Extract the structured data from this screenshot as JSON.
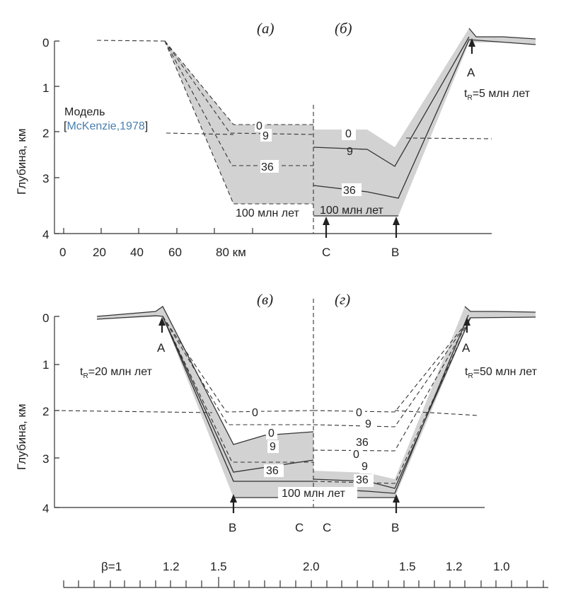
{
  "panels": {
    "a": "(а)",
    "b": "(б)",
    "v": "(в)",
    "g": "(г)"
  },
  "y_axis": {
    "label": "Глубина, км",
    "ticks": [
      "0",
      "1",
      "2",
      "3",
      "4"
    ]
  },
  "x_axis_top": {
    "ticks": [
      "0",
      "20",
      "40",
      "60",
      "80 км"
    ]
  },
  "model_note": {
    "line1": "Модель",
    "bracket_open": "[",
    "ref": "McKenzie,1978",
    "bracket_close": "]",
    "ref_color": "#4a7fb0"
  },
  "curve_labels": {
    "t0": "0",
    "t9": "9",
    "t36": "36",
    "t100": "100 млн лет"
  },
  "points": {
    "A": "A",
    "B": "B",
    "C": "C"
  },
  "rift_times": {
    "prefix": "t",
    "sub": "R",
    "b": "=5 млн лет",
    "v": "=20 млн лет",
    "g": "=50 млн лет"
  },
  "beta_scale": {
    "labels": [
      "β=1",
      "1.2",
      "1.5",
      "2.0",
      "1.5",
      "1.2",
      "1.0"
    ]
  }
}
